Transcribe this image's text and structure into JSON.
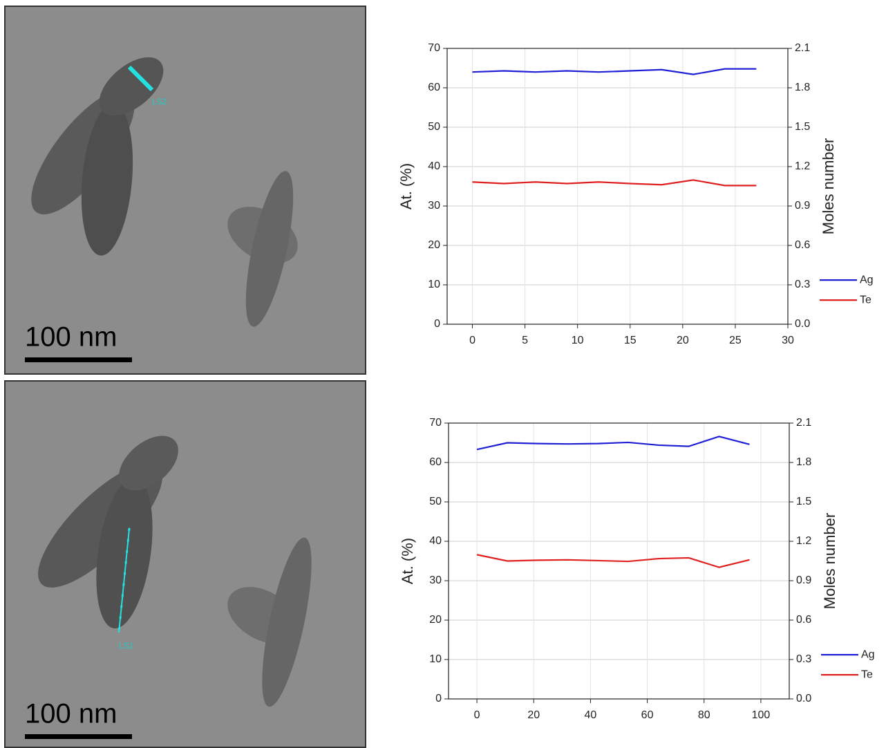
{
  "images": [
    {
      "label": "LS2",
      "scale_bar": "100 nm"
    },
    {
      "label": "LS1",
      "scale_bar": "100 nm"
    }
  ],
  "chart_data": [
    {
      "type": "line",
      "y_label": "At. (%)",
      "y2_label": "Moles number",
      "x": [
        0,
        3,
        6,
        9,
        12,
        15,
        18,
        21,
        24,
        27
      ],
      "series": [
        {
          "name": "Ag",
          "color": "#1f1fd6",
          "values": [
            64,
            64.3,
            64,
            64.3,
            64,
            64.3,
            64.6,
            63.4,
            64.8,
            64.8
          ]
        },
        {
          "name": "Te",
          "color": "#e01f1f",
          "values": [
            36.1,
            35.7,
            36.1,
            35.7,
            36.1,
            35.7,
            35.4,
            36.6,
            35.2,
            35.2
          ]
        }
      ],
      "xlim": [
        -2.4,
        30
      ],
      "xticks": [
        0,
        5,
        10,
        15,
        20,
        25,
        30
      ],
      "ylim": [
        0,
        70
      ],
      "yticks": [
        0,
        10,
        20,
        30,
        40,
        50,
        60,
        70
      ],
      "y2lim": [
        0,
        2.1
      ],
      "y2ticks": [
        {
          "value": 0,
          "label": "0.0"
        },
        0.3,
        0.6,
        0.9,
        1.2,
        1.5,
        1.8,
        2.1
      ],
      "grid": true,
      "legend": "right"
    },
    {
      "type": "line",
      "y_label": "At. (%)",
      "y2_label": "Moles number",
      "x": [
        0,
        10.7,
        21.4,
        32,
        42.6,
        53.3,
        64,
        74.6,
        85.3,
        96
      ],
      "series": [
        {
          "name": "Ag",
          "color": "#1f1fd6",
          "values": [
            63.3,
            65,
            64.8,
            64.7,
            64.8,
            65.1,
            64.4,
            64.1,
            66.6,
            64.6
          ]
        },
        {
          "name": "Te",
          "color": "#e01f1f",
          "values": [
            36.6,
            35,
            35.2,
            35.3,
            35.1,
            34.9,
            35.6,
            35.8,
            33.4,
            35.3
          ]
        }
      ],
      "xlim": [
        -10,
        110
      ],
      "xticks": [
        0,
        20,
        40,
        60,
        80,
        100
      ],
      "ylim": [
        0,
        70
      ],
      "yticks": [
        0,
        10,
        20,
        30,
        40,
        50,
        60,
        70
      ],
      "y2lim": [
        0,
        2.1
      ],
      "y2ticks": [
        {
          "value": 0,
          "label": "0.0"
        },
        0.3,
        0.6,
        0.9,
        1.2,
        1.5,
        1.8,
        2.1
      ],
      "grid": true,
      "legend": "right"
    }
  ]
}
